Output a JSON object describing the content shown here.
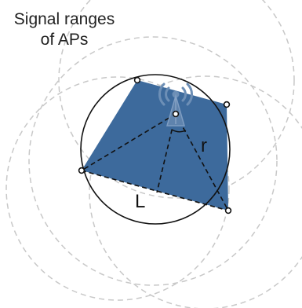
{
  "caption": {
    "line1": "Signal ranges",
    "line2": "of APs"
  },
  "labels": {
    "radius": "r",
    "length": "L"
  },
  "colors": {
    "region_fill": "#3d6a9c",
    "range_circles": "#c8c8c8",
    "boundary": "#111111",
    "ap_icon": "#5f83ad"
  },
  "icons": {
    "access_point": "wifi-tower-icon"
  }
}
